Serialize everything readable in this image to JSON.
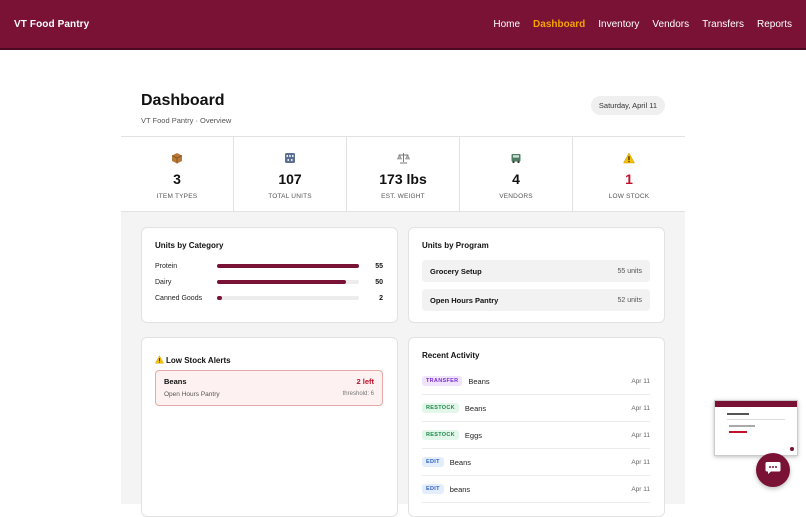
{
  "brand": "VT Food Pantry",
  "nav": {
    "items": [
      {
        "label": "Home",
        "active": false
      },
      {
        "label": "Dashboard",
        "active": true
      },
      {
        "label": "Inventory",
        "active": false
      },
      {
        "label": "Vendors",
        "active": false
      },
      {
        "label": "Transfers",
        "active": false
      },
      {
        "label": "Reports",
        "active": false
      }
    ]
  },
  "header": {
    "title": "Dashboard",
    "subtitle": "VT Food Pantry · Overview",
    "date": "Saturday, April 11"
  },
  "stats": [
    {
      "icon": "box-icon",
      "value": "3",
      "label": "ITEM TYPES"
    },
    {
      "icon": "abacus-icon",
      "value": "107",
      "label": "TOTAL UNITS"
    },
    {
      "icon": "scale-icon",
      "value": "173 lbs",
      "label": "EST. WEIGHT"
    },
    {
      "icon": "truck-icon",
      "value": "4",
      "label": "VENDORS"
    },
    {
      "icon": "warning-icon",
      "value": "1",
      "label": "LOW STOCK"
    }
  ],
  "units_by_category": {
    "title": "Units by Category",
    "max": 55,
    "rows": [
      {
        "name": "Protein",
        "value": 55
      },
      {
        "name": "Dairy",
        "value": 50
      },
      {
        "name": "Canned Goods",
        "value": 2
      }
    ]
  },
  "units_by_program": {
    "title": "Units by Program",
    "rows": [
      {
        "name": "Grocery Setup",
        "units": "55 units"
      },
      {
        "name": "Open Hours Pantry",
        "units": "52 units"
      }
    ]
  },
  "low_stock": {
    "title": "Low Stock Alerts",
    "alerts": [
      {
        "name": "Beans",
        "left": "2 left",
        "program": "Open Hours Pantry",
        "threshold": "threshold: 6"
      }
    ]
  },
  "recent_activity": {
    "title": "Recent Activity",
    "items": [
      {
        "tag": "TRANSFER",
        "kind": "transfer",
        "item": "Beans",
        "date": "Apr 11"
      },
      {
        "tag": "RESTOCK",
        "kind": "restock",
        "item": "Beans",
        "date": "Apr 11"
      },
      {
        "tag": "RESTOCK",
        "kind": "restock",
        "item": "Eggs",
        "date": "Apr 11"
      },
      {
        "tag": "EDIT",
        "kind": "edit",
        "item": "Beans",
        "date": "Apr 11"
      },
      {
        "tag": "EDIT",
        "kind": "edit",
        "item": "beans",
        "date": "Apr 11"
      }
    ]
  },
  "colors": {
    "brand": "#7a1236",
    "active_nav": "#f5a300",
    "alert_red": "#c0132b"
  }
}
